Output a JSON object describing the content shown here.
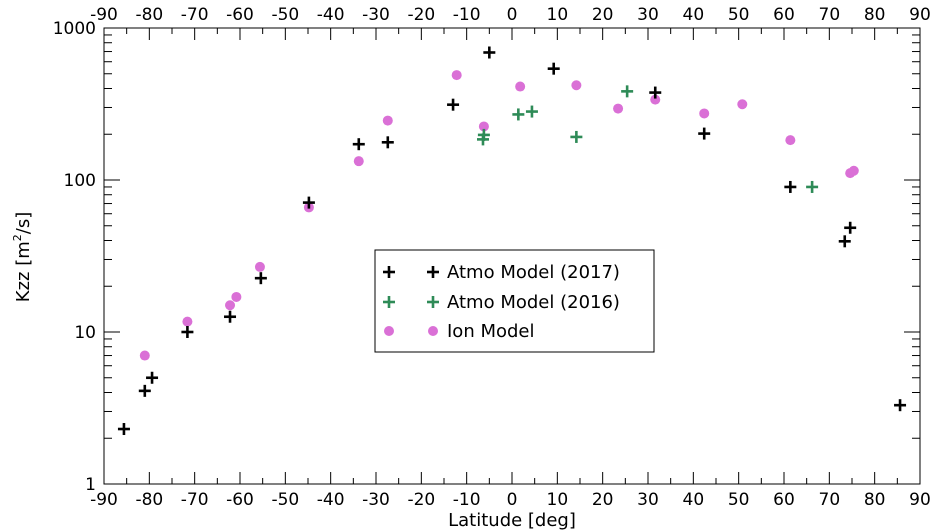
{
  "chart_data": {
    "type": "scatter",
    "title": "",
    "xlabel": "Latitude [deg]",
    "ylabel": "Kzz [m²/s]",
    "ylabel_parts": {
      "before": "Kzz [m",
      "sup": "2",
      "after": "/s]"
    },
    "xlim": [
      -90,
      90
    ],
    "ylim": [
      1,
      1000
    ],
    "yscale": "log",
    "xticks": [
      "-90",
      "-80",
      "-70",
      "-60",
      "-50",
      "-40",
      "-30",
      "-20",
      "-10",
      "0",
      "10",
      "20",
      "30",
      "40",
      "50",
      "60",
      "70",
      "80",
      "90"
    ],
    "yticks": [
      "1",
      "10",
      "100",
      "1000"
    ],
    "grid": false,
    "legend_position": "center",
    "series": [
      {
        "name": "Atmo Model (2017)",
        "marker": "plus",
        "color": "#000000",
        "points": [
          [
            -85.6,
            2.3
          ],
          [
            -81,
            4.1
          ],
          [
            -79.4,
            5.0
          ],
          [
            -71.6,
            10.0
          ],
          [
            -62.2,
            12.6
          ],
          [
            -55.4,
            22.6
          ],
          [
            -44.8,
            71.0
          ],
          [
            -33.8,
            172
          ],
          [
            -27.4,
            177
          ],
          [
            -13,
            313
          ],
          [
            -5,
            690
          ],
          [
            9.2,
            540
          ],
          [
            31.6,
            376
          ],
          [
            42.4,
            202
          ],
          [
            61.4,
            90
          ],
          [
            73.4,
            39.5
          ],
          [
            74.6,
            48.5
          ],
          [
            85.6,
            3.3
          ]
        ]
      },
      {
        "name": "Atmo Model (2016)",
        "marker": "plus",
        "color": "#2e8b57",
        "points": [
          [
            -6.2,
            198
          ],
          [
            -6.4,
            185
          ],
          [
            1.4,
            270
          ],
          [
            4.4,
            282
          ],
          [
            14.2,
            192
          ],
          [
            25.4,
            383
          ],
          [
            66.2,
            90
          ]
        ]
      },
      {
        "name": "Ion Model",
        "marker": "circle",
        "color": "#da70d6",
        "points": [
          [
            -81,
            7.0
          ],
          [
            -71.6,
            11.7
          ],
          [
            -62.2,
            15.0
          ],
          [
            -60.8,
            17.0
          ],
          [
            -55.6,
            26.8
          ],
          [
            -44.8,
            66
          ],
          [
            -33.8,
            133
          ],
          [
            -27.4,
            246
          ],
          [
            -12.2,
            490
          ],
          [
            -6.2,
            225
          ],
          [
            1.8,
            412
          ],
          [
            14.2,
            420
          ],
          [
            23.4,
            295
          ],
          [
            31.6,
            338
          ],
          [
            42.4,
            274
          ],
          [
            50.8,
            315
          ],
          [
            61.4,
            183
          ],
          [
            74.6,
            111
          ],
          [
            75.4,
            115
          ]
        ]
      }
    ]
  }
}
